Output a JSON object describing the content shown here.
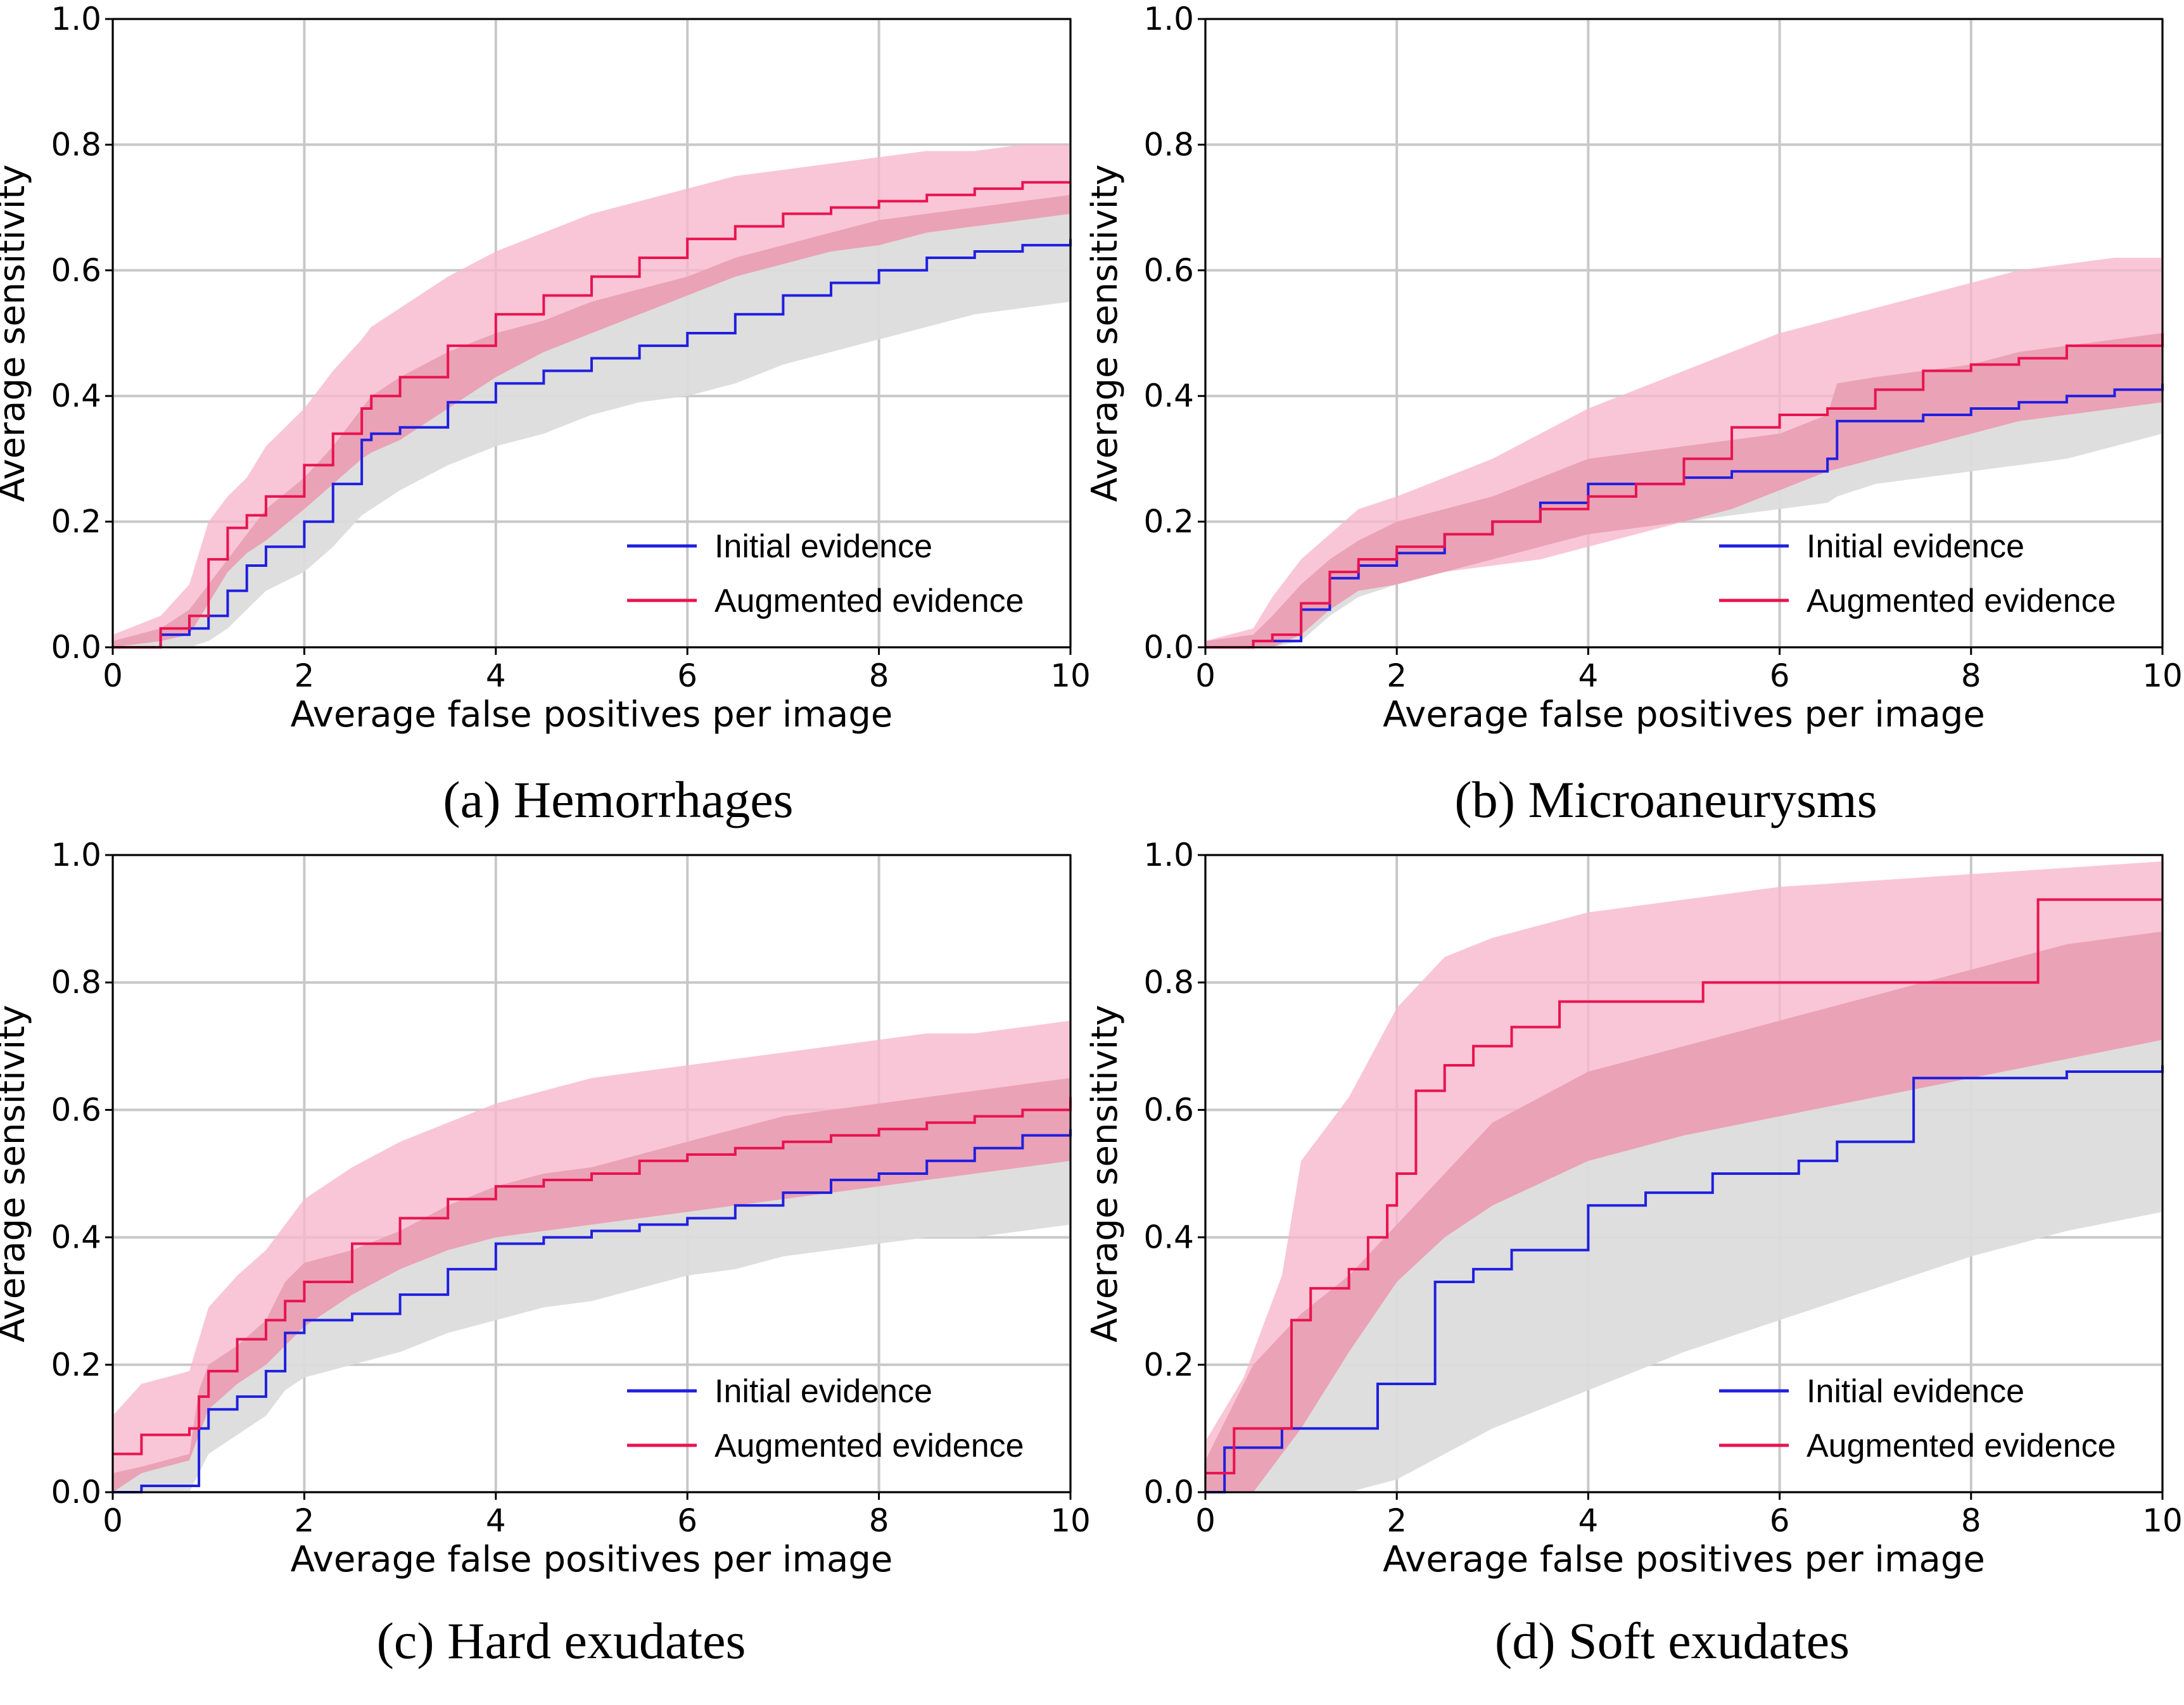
{
  "figure": {
    "shared": {
      "xlabel": "Average false positives per image",
      "ylabel": "Average sensitivity",
      "xlim": [
        0,
        10
      ],
      "ylim": [
        0,
        1
      ],
      "xticks": [
        "0",
        "2",
        "4",
        "6",
        "8",
        "10"
      ],
      "yticks": [
        "0.0",
        "0.2",
        "0.4",
        "0.6",
        "0.8",
        "1.0"
      ],
      "legend": [
        "Initial evidence",
        "Augmented evidence"
      ],
      "legend_placement": "bottom-right",
      "grid": true,
      "colors": {
        "initial_line": "#1f1fe0",
        "augmented_line": "#e8134f",
        "initial_band": "#dcdcdc",
        "augmented_band": "#f7b8cd",
        "overlap_band": "#e89cb2",
        "grid": "#c8c8c8"
      }
    }
  },
  "chart_data": [
    {
      "type": "line",
      "caption": "(a) Hemorrhages",
      "xlabel": "Average false positives per image",
      "ylabel": "Average sensitivity",
      "xlim": [
        0,
        10
      ],
      "ylim": [
        0,
        1
      ],
      "series": [
        {
          "name": "Initial evidence",
          "x": [
            0,
            0.5,
            0.8,
            1.0,
            1.2,
            1.4,
            1.6,
            2.0,
            2.3,
            2.6,
            2.7,
            3.0,
            3.5,
            4.0,
            4.5,
            5.0,
            5.5,
            6.0,
            6.5,
            7.0,
            7.5,
            8.0,
            8.5,
            9.0,
            9.5,
            10.0
          ],
          "y": [
            0.0,
            0.02,
            0.03,
            0.05,
            0.09,
            0.13,
            0.16,
            0.2,
            0.26,
            0.33,
            0.34,
            0.35,
            0.39,
            0.42,
            0.44,
            0.46,
            0.48,
            0.5,
            0.53,
            0.56,
            0.58,
            0.6,
            0.62,
            0.63,
            0.64,
            0.65
          ],
          "band_upper": [
            0.01,
            0.03,
            0.06,
            0.1,
            0.14,
            0.18,
            0.22,
            0.27,
            0.32,
            0.38,
            0.4,
            0.43,
            0.47,
            0.5,
            0.52,
            0.55,
            0.57,
            0.59,
            0.62,
            0.64,
            0.66,
            0.68,
            0.69,
            0.7,
            0.71,
            0.72
          ],
          "band_lower": [
            0.0,
            0.0,
            0.0,
            0.01,
            0.03,
            0.06,
            0.09,
            0.12,
            0.16,
            0.21,
            0.22,
            0.25,
            0.29,
            0.32,
            0.34,
            0.37,
            0.39,
            0.4,
            0.42,
            0.45,
            0.47,
            0.49,
            0.51,
            0.53,
            0.54,
            0.55
          ]
        },
        {
          "name": "Augmented evidence",
          "x": [
            0,
            0.5,
            0.8,
            1.0,
            1.2,
            1.4,
            1.6,
            2.0,
            2.3,
            2.6,
            2.7,
            3.0,
            3.5,
            4.0,
            4.5,
            5.0,
            5.5,
            6.0,
            6.5,
            7.0,
            7.5,
            8.0,
            8.5,
            9.0,
            9.5,
            10.0
          ],
          "y": [
            0.0,
            0.03,
            0.05,
            0.14,
            0.19,
            0.21,
            0.24,
            0.29,
            0.34,
            0.38,
            0.4,
            0.43,
            0.48,
            0.53,
            0.56,
            0.59,
            0.62,
            0.65,
            0.67,
            0.69,
            0.7,
            0.71,
            0.72,
            0.73,
            0.74,
            0.74
          ],
          "band_upper": [
            0.02,
            0.05,
            0.1,
            0.2,
            0.24,
            0.27,
            0.32,
            0.38,
            0.44,
            0.49,
            0.51,
            0.54,
            0.59,
            0.63,
            0.66,
            0.69,
            0.71,
            0.73,
            0.75,
            0.76,
            0.77,
            0.78,
            0.79,
            0.79,
            0.8,
            0.8
          ],
          "band_lower": [
            0.0,
            0.01,
            0.02,
            0.07,
            0.12,
            0.15,
            0.17,
            0.22,
            0.26,
            0.3,
            0.31,
            0.33,
            0.38,
            0.43,
            0.47,
            0.5,
            0.53,
            0.56,
            0.59,
            0.61,
            0.63,
            0.64,
            0.66,
            0.67,
            0.68,
            0.69
          ]
        }
      ]
    },
    {
      "type": "line",
      "caption": "(b) Microaneurysms",
      "xlabel": "Average false positives per image",
      "ylabel": "Average sensitivity",
      "xlim": [
        0,
        10
      ],
      "ylim": [
        0,
        1
      ],
      "series": [
        {
          "name": "Initial evidence",
          "x": [
            0,
            0.5,
            0.7,
            1.0,
            1.3,
            1.6,
            2.0,
            2.5,
            3.0,
            3.5,
            4.0,
            4.5,
            5.0,
            5.5,
            6.0,
            6.5,
            6.6,
            7.0,
            7.5,
            8.0,
            8.5,
            9.0,
            9.5,
            10.0
          ],
          "y": [
            0.0,
            0.01,
            0.01,
            0.06,
            0.11,
            0.13,
            0.15,
            0.18,
            0.2,
            0.23,
            0.26,
            0.26,
            0.27,
            0.28,
            0.28,
            0.3,
            0.36,
            0.36,
            0.37,
            0.38,
            0.39,
            0.4,
            0.41,
            0.42
          ],
          "band_upper": [
            0.01,
            0.02,
            0.05,
            0.1,
            0.14,
            0.17,
            0.2,
            0.22,
            0.24,
            0.27,
            0.3,
            0.31,
            0.32,
            0.33,
            0.34,
            0.37,
            0.42,
            0.43,
            0.44,
            0.45,
            0.47,
            0.48,
            0.49,
            0.5
          ],
          "band_lower": [
            0.0,
            0.0,
            0.0,
            0.01,
            0.05,
            0.08,
            0.1,
            0.12,
            0.14,
            0.16,
            0.18,
            0.19,
            0.2,
            0.21,
            0.22,
            0.23,
            0.24,
            0.26,
            0.27,
            0.28,
            0.29,
            0.3,
            0.32,
            0.34
          ]
        },
        {
          "name": "Augmented evidence",
          "x": [
            0,
            0.5,
            0.7,
            1.0,
            1.3,
            1.6,
            2.0,
            2.5,
            3.0,
            3.5,
            4.0,
            4.5,
            5.0,
            5.5,
            6.0,
            6.5,
            7.0,
            7.5,
            8.0,
            8.5,
            9.0,
            9.5,
            10.0
          ],
          "y": [
            0.0,
            0.01,
            0.02,
            0.07,
            0.12,
            0.14,
            0.16,
            0.18,
            0.2,
            0.22,
            0.24,
            0.26,
            0.3,
            0.35,
            0.37,
            0.38,
            0.41,
            0.44,
            0.45,
            0.46,
            0.48,
            0.48,
            0.5
          ],
          "band_upper": [
            0.01,
            0.03,
            0.08,
            0.14,
            0.18,
            0.22,
            0.24,
            0.27,
            0.3,
            0.34,
            0.38,
            0.41,
            0.44,
            0.47,
            0.5,
            0.52,
            0.54,
            0.56,
            0.58,
            0.6,
            0.61,
            0.62,
            0.62
          ],
          "band_lower": [
            0.0,
            0.0,
            0.0,
            0.02,
            0.06,
            0.09,
            0.1,
            0.12,
            0.13,
            0.14,
            0.16,
            0.18,
            0.2,
            0.22,
            0.25,
            0.28,
            0.3,
            0.32,
            0.34,
            0.36,
            0.37,
            0.38,
            0.39
          ]
        }
      ]
    },
    {
      "type": "line",
      "caption": "(c) Hard exudates",
      "xlabel": "Average false positives per image",
      "ylabel": "Average sensitivity",
      "xlim": [
        0,
        10
      ],
      "ylim": [
        0,
        1
      ],
      "series": [
        {
          "name": "Initial evidence",
          "x": [
            0,
            0.3,
            0.8,
            0.9,
            1.0,
            1.3,
            1.6,
            1.8,
            2.0,
            2.5,
            3.0,
            3.5,
            4.0,
            4.5,
            5.0,
            5.5,
            6.0,
            6.5,
            7.0,
            7.5,
            8.0,
            8.5,
            9.0,
            9.5,
            10.0
          ],
          "y": [
            0.0,
            0.01,
            0.01,
            0.1,
            0.13,
            0.15,
            0.19,
            0.25,
            0.27,
            0.28,
            0.31,
            0.35,
            0.39,
            0.4,
            0.41,
            0.42,
            0.43,
            0.45,
            0.47,
            0.49,
            0.5,
            0.52,
            0.54,
            0.56,
            0.57
          ],
          "band_upper": [
            0.03,
            0.04,
            0.06,
            0.16,
            0.2,
            0.23,
            0.27,
            0.33,
            0.36,
            0.38,
            0.41,
            0.45,
            0.48,
            0.5,
            0.51,
            0.53,
            0.55,
            0.57,
            0.59,
            0.6,
            0.61,
            0.62,
            0.63,
            0.64,
            0.65
          ],
          "band_lower": [
            0.0,
            0.0,
            0.0,
            0.03,
            0.06,
            0.09,
            0.12,
            0.16,
            0.18,
            0.2,
            0.22,
            0.25,
            0.27,
            0.29,
            0.3,
            0.32,
            0.34,
            0.35,
            0.37,
            0.38,
            0.39,
            0.4,
            0.4,
            0.41,
            0.42
          ]
        },
        {
          "name": "Augmented evidence",
          "x": [
            0,
            0.3,
            0.8,
            0.9,
            1.0,
            1.3,
            1.6,
            1.8,
            2.0,
            2.5,
            3.0,
            3.5,
            4.0,
            4.5,
            5.0,
            5.5,
            6.0,
            6.5,
            7.0,
            7.5,
            8.0,
            8.5,
            9.0,
            9.5,
            10.0
          ],
          "y": [
            0.06,
            0.09,
            0.1,
            0.15,
            0.19,
            0.24,
            0.27,
            0.3,
            0.33,
            0.39,
            0.43,
            0.46,
            0.48,
            0.49,
            0.5,
            0.52,
            0.53,
            0.54,
            0.55,
            0.56,
            0.57,
            0.58,
            0.59,
            0.6,
            0.62
          ],
          "band_upper": [
            0.12,
            0.17,
            0.19,
            0.24,
            0.29,
            0.34,
            0.38,
            0.42,
            0.46,
            0.51,
            0.55,
            0.58,
            0.61,
            0.63,
            0.65,
            0.66,
            0.67,
            0.68,
            0.69,
            0.7,
            0.71,
            0.72,
            0.72,
            0.73,
            0.74
          ],
          "band_lower": [
            0.0,
            0.03,
            0.05,
            0.09,
            0.13,
            0.17,
            0.2,
            0.23,
            0.26,
            0.31,
            0.35,
            0.38,
            0.4,
            0.41,
            0.42,
            0.43,
            0.44,
            0.45,
            0.46,
            0.47,
            0.48,
            0.49,
            0.5,
            0.51,
            0.52
          ]
        }
      ]
    },
    {
      "type": "line",
      "caption": "(d) Soft exudates",
      "xlabel": "Average false positives per image",
      "ylabel": "Average sensitivity",
      "xlim": [
        0,
        10
      ],
      "ylim": [
        0,
        1
      ],
      "series": [
        {
          "name": "Initial evidence",
          "steps": [
            [
              0,
              0.0
            ],
            [
              0.2,
              0.07
            ],
            [
              0.8,
              0.1
            ],
            [
              1.8,
              0.17
            ],
            [
              2.4,
              0.33
            ],
            [
              2.8,
              0.35
            ],
            [
              3.2,
              0.38
            ],
            [
              4.0,
              0.45
            ],
            [
              4.6,
              0.47
            ],
            [
              5.3,
              0.5
            ],
            [
              6.2,
              0.52
            ],
            [
              6.6,
              0.55
            ],
            [
              7.4,
              0.65
            ],
            [
              9.0,
              0.66
            ],
            [
              10.0,
              0.67
            ]
          ],
          "band_upper": [
            [
              0,
              0.05
            ],
            [
              0.5,
              0.2
            ],
            [
              1.0,
              0.28
            ],
            [
              1.5,
              0.34
            ],
            [
              2.0,
              0.42
            ],
            [
              2.5,
              0.5
            ],
            [
              3.0,
              0.58
            ],
            [
              4.0,
              0.66
            ],
            [
              5.0,
              0.7
            ],
            [
              6.0,
              0.74
            ],
            [
              7.0,
              0.78
            ],
            [
              8.0,
              0.82
            ],
            [
              9.0,
              0.86
            ],
            [
              10.0,
              0.88
            ]
          ],
          "band_lower": [
            [
              0,
              0.0
            ],
            [
              1.0,
              0.0
            ],
            [
              1.5,
              0.0
            ],
            [
              2.0,
              0.02
            ],
            [
              3.0,
              0.1
            ],
            [
              4.0,
              0.16
            ],
            [
              5.0,
              0.22
            ],
            [
              6.0,
              0.27
            ],
            [
              7.0,
              0.32
            ],
            [
              8.0,
              0.37
            ],
            [
              9.0,
              0.41
            ],
            [
              10.0,
              0.44
            ]
          ]
        },
        {
          "name": "Augmented evidence",
          "steps": [
            [
              0,
              0.03
            ],
            [
              0.3,
              0.1
            ],
            [
              0.9,
              0.27
            ],
            [
              1.1,
              0.32
            ],
            [
              1.5,
              0.35
            ],
            [
              1.7,
              0.4
            ],
            [
              1.9,
              0.45
            ],
            [
              2.0,
              0.5
            ],
            [
              2.2,
              0.63
            ],
            [
              2.5,
              0.67
            ],
            [
              2.8,
              0.7
            ],
            [
              3.2,
              0.73
            ],
            [
              3.7,
              0.77
            ],
            [
              5.2,
              0.8
            ],
            [
              8.7,
              0.93
            ],
            [
              10.0,
              0.93
            ]
          ],
          "band_upper": [
            [
              0,
              0.08
            ],
            [
              0.4,
              0.18
            ],
            [
              0.8,
              0.34
            ],
            [
              1.0,
              0.52
            ],
            [
              1.5,
              0.62
            ],
            [
              2.0,
              0.76
            ],
            [
              2.5,
              0.84
            ],
            [
              3.0,
              0.87
            ],
            [
              4.0,
              0.91
            ],
            [
              5.0,
              0.93
            ],
            [
              6.0,
              0.95
            ],
            [
              7.0,
              0.96
            ],
            [
              8.0,
              0.97
            ],
            [
              9.0,
              0.98
            ],
            [
              10.0,
              0.99
            ]
          ],
          "band_lower": [
            [
              0,
              0.0
            ],
            [
              0.5,
              0.0
            ],
            [
              1.0,
              0.1
            ],
            [
              1.5,
              0.22
            ],
            [
              2.0,
              0.33
            ],
            [
              2.5,
              0.4
            ],
            [
              3.0,
              0.45
            ],
            [
              4.0,
              0.52
            ],
            [
              5.0,
              0.56
            ],
            [
              6.0,
              0.59
            ],
            [
              7.0,
              0.62
            ],
            [
              8.0,
              0.65
            ],
            [
              9.0,
              0.68
            ],
            [
              10.0,
              0.71
            ]
          ]
        }
      ]
    }
  ]
}
